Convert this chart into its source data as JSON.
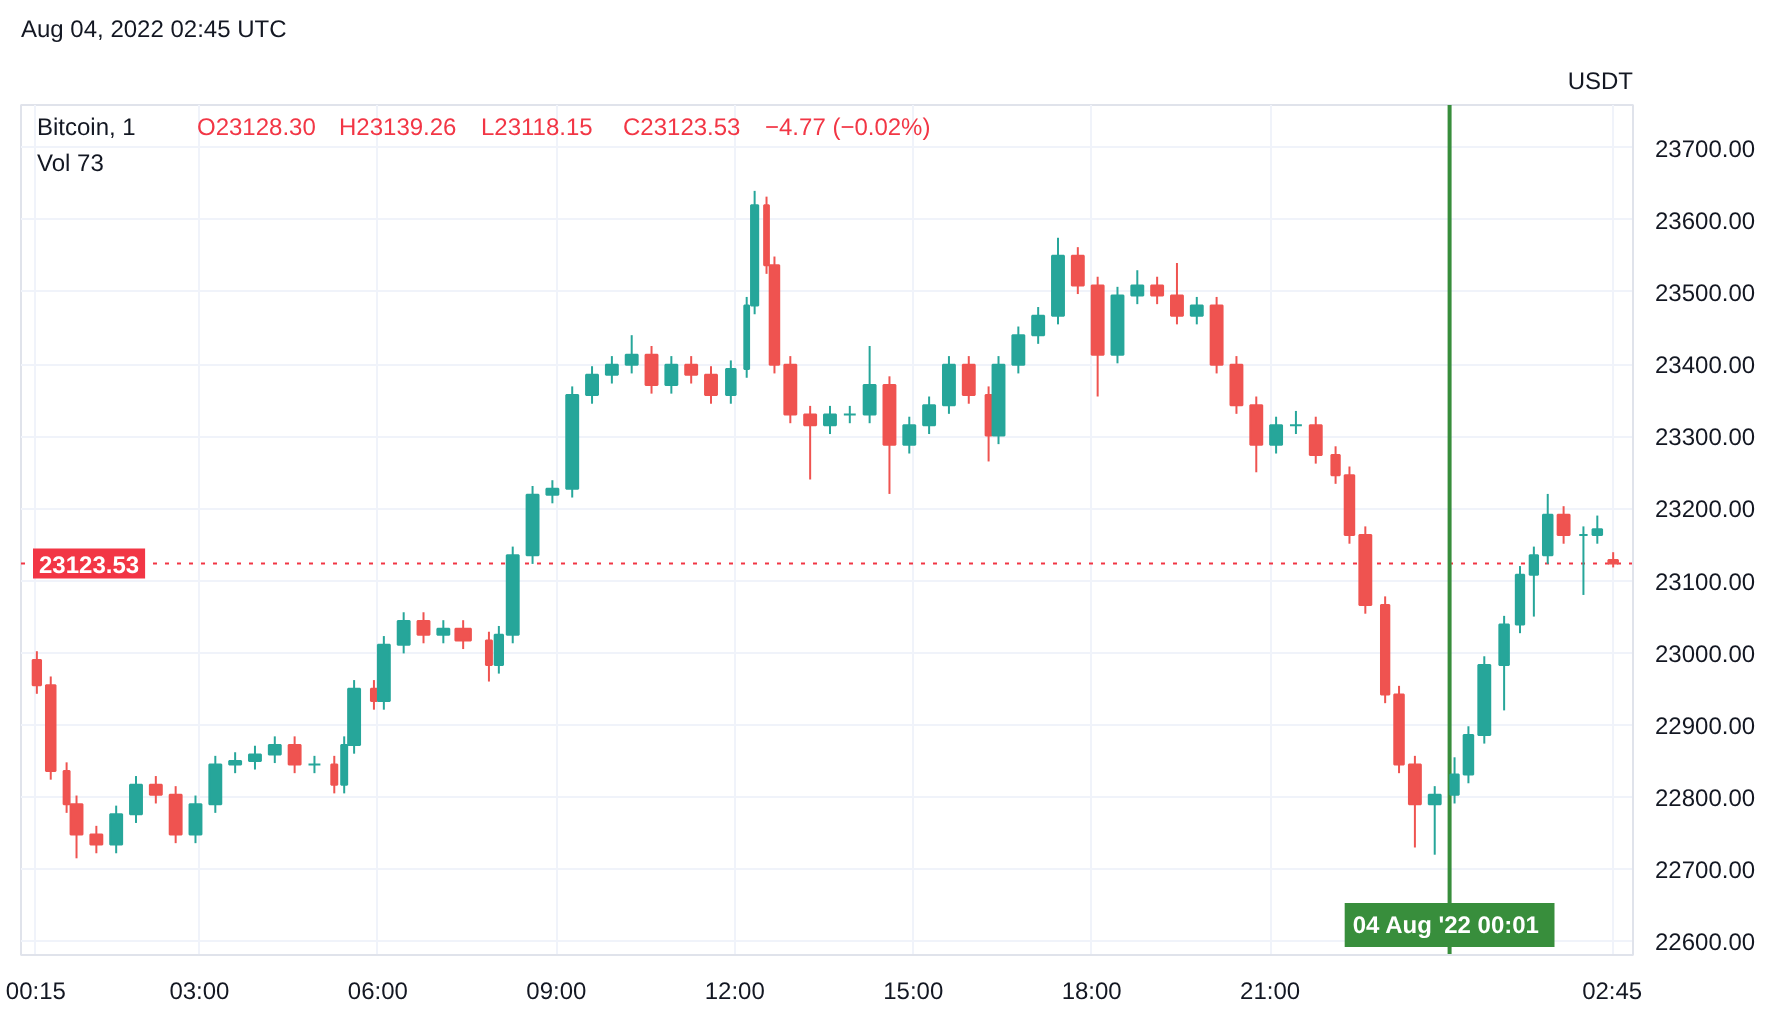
{
  "chart_data": {
    "type": "candlestick",
    "title": "Bitcoin, 1",
    "subtitle": "Aug 04, 2022 02:45 UTC",
    "ylabel": "USDT",
    "annotations": [
      "O23128.30",
      "H23139.26",
      "L23118.15",
      "C23123.53",
      "−4.77 (−0.02%)",
      "Vol 73"
    ],
    "x": [
      "2022-08-03T00:16",
      "2022-08-03T00:30",
      "2022-08-03T00:46",
      "2022-08-03T00:56",
      "2022-08-03T01:16",
      "2022-08-03T01:36",
      "2022-08-03T01:56",
      "2022-08-03T02:16",
      "2022-08-03T02:36",
      "2022-08-03T02:56",
      "2022-08-03T03:16",
      "2022-08-03T03:36",
      "2022-08-03T03:56",
      "2022-08-03T04:16",
      "2022-08-03T04:36",
      "2022-08-03T04:56",
      "2022-08-03T05:16",
      "2022-08-03T05:26",
      "2022-08-03T05:36",
      "2022-08-03T05:56",
      "2022-08-03T06:06",
      "2022-08-03T06:26",
      "2022-08-03T06:46",
      "2022-08-03T07:06",
      "2022-08-03T07:26",
      "2022-08-03T07:52",
      "2022-08-03T08:02",
      "2022-08-03T08:16",
      "2022-08-03T08:36",
      "2022-08-03T08:56",
      "2022-08-03T09:16",
      "2022-08-03T09:36",
      "2022-08-03T09:56",
      "2022-08-03T10:16",
      "2022-08-03T10:36",
      "2022-08-03T10:56",
      "2022-08-03T11:16",
      "2022-08-03T11:36",
      "2022-08-03T11:56",
      "2022-08-03T12:12",
      "2022-08-03T12:20",
      "2022-08-03T12:32",
      "2022-08-03T12:40",
      "2022-08-03T12:56",
      "2022-08-03T13:16",
      "2022-08-03T13:36",
      "2022-08-03T13:56",
      "2022-08-03T14:16",
      "2022-08-03T14:36",
      "2022-08-03T14:56",
      "2022-08-03T15:16",
      "2022-08-03T15:36",
      "2022-08-03T15:56",
      "2022-08-03T16:16",
      "2022-08-03T16:26",
      "2022-08-03T16:46",
      "2022-08-03T17:06",
      "2022-08-03T17:26",
      "2022-08-03T17:46",
      "2022-08-03T18:06",
      "2022-08-03T18:26",
      "2022-08-03T18:46",
      "2022-08-03T19:06",
      "2022-08-03T19:26",
      "2022-08-03T19:46",
      "2022-08-03T20:06",
      "2022-08-03T20:26",
      "2022-08-03T20:46",
      "2022-08-03T21:06",
      "2022-08-03T21:26",
      "2022-08-03T21:46",
      "2022-08-03T22:06",
      "2022-08-03T22:20",
      "2022-08-03T22:36",
      "2022-08-03T22:56",
      "2022-08-03T23:10",
      "2022-08-03T23:26",
      "2022-08-03T23:46",
      "2022-08-04T00:06",
      "2022-08-04T00:20",
      "2022-08-04T00:36",
      "2022-08-04T00:56",
      "2022-08-04T01:12",
      "2022-08-04T01:26",
      "2022-08-04T01:40",
      "2022-08-04T01:56",
      "2022-08-04T02:16",
      "2022-08-04T02:30",
      "2022-08-04T02:46"
    ],
    "ohlc": [
      [
        22990,
        23002,
        22943,
        22955
      ],
      [
        22955,
        22967,
        22824,
        22836
      ],
      [
        22836,
        22848,
        22778,
        22790
      ],
      [
        22790,
        22802,
        22715,
        22748
      ],
      [
        22748,
        22760,
        22722,
        22734
      ],
      [
        22734,
        22788,
        22722,
        22776
      ],
      [
        22776,
        22829,
        22764,
        22817
      ],
      [
        22817,
        22829,
        22791,
        22803
      ],
      [
        22803,
        22815,
        22736,
        22748
      ],
      [
        22748,
        22802,
        22736,
        22790
      ],
      [
        22790,
        22857,
        22778,
        22845
      ],
      [
        22845,
        22862,
        22833,
        22850
      ],
      [
        22850,
        22871,
        22838,
        22859
      ],
      [
        22859,
        22884,
        22847,
        22872
      ],
      [
        22872,
        22884,
        22833,
        22845
      ],
      [
        22845,
        22857,
        22833,
        22845
      ],
      [
        22845,
        22857,
        22805,
        22817
      ],
      [
        22817,
        22884,
        22805,
        22872
      ],
      [
        22872,
        22962,
        22860,
        22950
      ],
      [
        22950,
        22962,
        22921,
        22933
      ],
      [
        22933,
        23023,
        22921,
        23011
      ],
      [
        23011,
        23056,
        22999,
        23044
      ],
      [
        23044,
        23056,
        23013,
        23025
      ],
      [
        23025,
        23045,
        23013,
        23033
      ],
      [
        23033,
        23045,
        23005,
        23017
      ],
      [
        23017,
        23029,
        22960,
        22983
      ],
      [
        22983,
        23037,
        22971,
        23025
      ],
      [
        23025,
        23147,
        23013,
        23135
      ],
      [
        23135,
        23231,
        23123,
        23219
      ],
      [
        23219,
        23239,
        23207,
        23227
      ],
      [
        23227,
        23369,
        23215,
        23357
      ],
      [
        23357,
        23397,
        23345,
        23385
      ],
      [
        23385,
        23411,
        23373,
        23399
      ],
      [
        23399,
        23440,
        23387,
        23413
      ],
      [
        23413,
        23425,
        23359,
        23371
      ],
      [
        23371,
        23411,
        23359,
        23399
      ],
      [
        23399,
        23411,
        23373,
        23385
      ],
      [
        23385,
        23397,
        23345,
        23357
      ],
      [
        23357,
        23405,
        23345,
        23393
      ],
      [
        23393,
        23493,
        23381,
        23481
      ],
      [
        23481,
        23640,
        23469,
        23620
      ],
      [
        23620,
        23632,
        23525,
        23537
      ],
      [
        23537,
        23549,
        23387,
        23399
      ],
      [
        23399,
        23411,
        23318,
        23330
      ],
      [
        23330,
        23342,
        23240,
        23315
      ],
      [
        23315,
        23342,
        23303,
        23330
      ],
      [
        23330,
        23342,
        23318,
        23330
      ],
      [
        23330,
        23425,
        23318,
        23371
      ],
      [
        23371,
        23383,
        23220,
        23288
      ],
      [
        23288,
        23327,
        23276,
        23315
      ],
      [
        23315,
        23355,
        23303,
        23343
      ],
      [
        23343,
        23411,
        23331,
        23399
      ],
      [
        23399,
        23411,
        23345,
        23357
      ],
      [
        23357,
        23369,
        23265,
        23301
      ],
      [
        23301,
        23411,
        23289,
        23399
      ],
      [
        23399,
        23452,
        23387,
        23440
      ],
      [
        23440,
        23479,
        23428,
        23467
      ],
      [
        23467,
        23575,
        23455,
        23550
      ],
      [
        23550,
        23562,
        23497,
        23509
      ],
      [
        23509,
        23521,
        23355,
        23413
      ],
      [
        23413,
        23507,
        23401,
        23495
      ],
      [
        23495,
        23530,
        23483,
        23509
      ],
      [
        23509,
        23521,
        23483,
        23495
      ],
      [
        23495,
        23540,
        23455,
        23467
      ],
      [
        23467,
        23493,
        23455,
        23481
      ],
      [
        23481,
        23493,
        23387,
        23399
      ],
      [
        23399,
        23411,
        23331,
        23343
      ],
      [
        23343,
        23355,
        23250,
        23288
      ],
      [
        23288,
        23327,
        23276,
        23315
      ],
      [
        23315,
        23335,
        23303,
        23315
      ],
      [
        23315,
        23327,
        23262,
        23274
      ],
      [
        23274,
        23286,
        23234,
        23246
      ],
      [
        23246,
        23258,
        23151,
        23163
      ],
      [
        23163,
        23175,
        23054,
        23066
      ],
      [
        23066,
        23078,
        22930,
        22942
      ],
      [
        22942,
        22954,
        22833,
        22845
      ],
      [
        22845,
        22857,
        22730,
        22790
      ],
      [
        22790,
        22815,
        22720,
        22803
      ],
      [
        22803,
        22855,
        22791,
        22831
      ],
      [
        22831,
        22898,
        22819,
        22886
      ],
      [
        22886,
        22995,
        22874,
        22983
      ],
      [
        22983,
        23051,
        22920,
        23039
      ],
      [
        23039,
        23120,
        23027,
        23108
      ],
      [
        23108,
        23147,
        23050,
        23135
      ],
      [
        23135,
        23220,
        23123,
        23191
      ],
      [
        23191,
        23203,
        23151,
        23163
      ],
      [
        23163,
        23175,
        23080,
        23163
      ],
      [
        23163,
        23190,
        23151,
        23171
      ],
      [
        23128.3,
        23139.26,
        23118.15,
        23123.53
      ]
    ],
    "xlim": [
      "2022-08-03T00:00",
      "2022-08-04T03:06"
    ],
    "ylim": [
      22581,
      23759
    ],
    "xticks": [
      {
        "value": "2022-08-03T00:15",
        "label": "00:15"
      },
      {
        "value": "2022-08-03T03:00",
        "label": "03:00"
      },
      {
        "value": "2022-08-03T06:00",
        "label": "06:00"
      },
      {
        "value": "2022-08-03T09:00",
        "label": "09:00"
      },
      {
        "value": "2022-08-03T12:00",
        "label": "12:00"
      },
      {
        "value": "2022-08-03T15:00",
        "label": "15:00"
      },
      {
        "value": "2022-08-03T18:00",
        "label": "18:00"
      },
      {
        "value": "2022-08-03T21:00",
        "label": "21:00"
      },
      {
        "value": "2022-08-04T02:45",
        "label": "02:45"
      }
    ],
    "yticks": [
      {
        "value": 22600,
        "label": "22600.00"
      },
      {
        "value": 22700,
        "label": "22700.00"
      },
      {
        "value": 22800,
        "label": "22800.00"
      },
      {
        "value": 22900,
        "label": "22900.00"
      },
      {
        "value": 23000,
        "label": "23000.00"
      },
      {
        "value": 23100,
        "label": "23100.00"
      },
      {
        "value": 23200,
        "label": "23200.00"
      },
      {
        "value": 23300,
        "label": "23300.00"
      },
      {
        "value": 23400,
        "label": "23400.00"
      },
      {
        "value": 23500,
        "label": "23500.00"
      },
      {
        "value": 23600,
        "label": "23600.00"
      },
      {
        "value": 23700,
        "label": "23700.00"
      }
    ],
    "ref_lines": [
      {
        "axis": "y",
        "value": 23123.53,
        "label": "23123.53",
        "color": "#f23645",
        "line_style": "dotted"
      },
      {
        "axis": "x",
        "value": "2022-08-04T00:01",
        "label": "04 Aug '22  00:01",
        "color": "#388e3c",
        "line_style": "solid"
      }
    ],
    "grid": true
  }
}
